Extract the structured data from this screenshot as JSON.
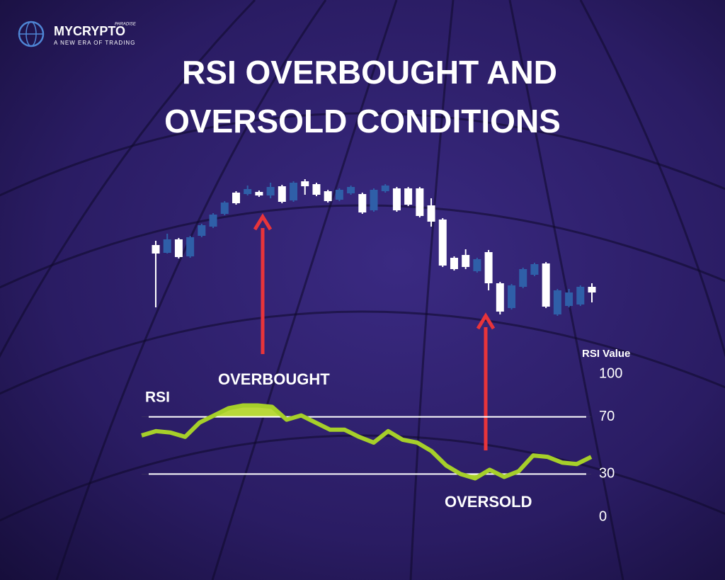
{
  "header": {
    "logo": {
      "brand": "MYCRYPTO",
      "tag": "PARADISE",
      "slogan": "A NEW ERA OF TRADING"
    },
    "title": [
      "RSI OVERBOUGHT AND",
      "OVERSOLD CONDITIONS"
    ]
  },
  "chart_data": [
    {
      "type": "candlestick",
      "up_color": "#ffffff",
      "down_color": "#2f5fa8",
      "ylim": [
        0,
        100
      ],
      "open": [
        46,
        56,
        43.5,
        57.5,
        66,
        73.5,
        82,
        81.5,
        91.5,
        87,
        93,
        82.5,
        96,
        93.5,
        87.5,
        83,
        91,
        93,
        75,
        91,
        94,
        76.5,
        80.5,
        72.5,
        68.5,
        37.5,
        35,
        36.5,
        42,
        25,
        5,
        23.5,
        35,
        38.5,
        8.5,
        20,
        18.5,
        22.5,
        18.5
      ],
      "high": [
        55,
        60,
        57,
        58.5,
        67,
        74.5,
        83,
        90,
        94,
        90.5,
        96,
        94.5,
        97,
        98.5,
        96,
        91,
        92,
        94,
        89,
        92,
        95,
        93,
        93,
        93,
        85,
        71,
        44,
        49,
        43,
        48.5,
        26,
        24.5,
        36,
        39.5,
        40,
        21,
        21,
        23.5,
        25
      ],
      "low": [
        8,
        46,
        42.5,
        43,
        57.5,
        64,
        73,
        80.5,
        87,
        86,
        85,
        81.5,
        82.5,
        87.5,
        86.5,
        82,
        83,
        87.5,
        74,
        75.5,
        89,
        75.5,
        79.5,
        71.5,
        65,
        36.5,
        34,
        35,
        32.5,
        20,
        3,
        6.5,
        21.5,
        30,
        7.5,
        2,
        8,
        9,
        11.5
      ],
      "close": [
        52,
        46.5,
        56,
        44,
        58.5,
        65,
        74,
        89,
        88,
        89.5,
        87,
        93.5,
        83.5,
        97,
        95,
        90,
        84,
        88.5,
        88,
        76.5,
        90,
        92,
        92,
        92,
        80,
        70,
        43,
        45,
        33.5,
        47,
        25,
        7.5,
        22.5,
        31,
        39,
        3,
        9,
        10,
        22.5
      ]
    },
    {
      "type": "line",
      "name": "RSI",
      "color": "#a6cf2a",
      "fill_color": "#b9d83a",
      "values": [
        57,
        60,
        59,
        56,
        66,
        71,
        76,
        78,
        78,
        77,
        68,
        71,
        66,
        61,
        61,
        56,
        52,
        60,
        54,
        52,
        46,
        36,
        30,
        27,
        33,
        28,
        32,
        43,
        42,
        38,
        37,
        42
      ],
      "ylim": [
        0,
        100
      ],
      "yticks": [
        0,
        30,
        70,
        100
      ],
      "y_axis_label": "RSI Value",
      "reference_lines": [
        70,
        30
      ],
      "annotations": [
        "OVERBOUGHT",
        "OVERSOLD"
      ]
    }
  ]
}
